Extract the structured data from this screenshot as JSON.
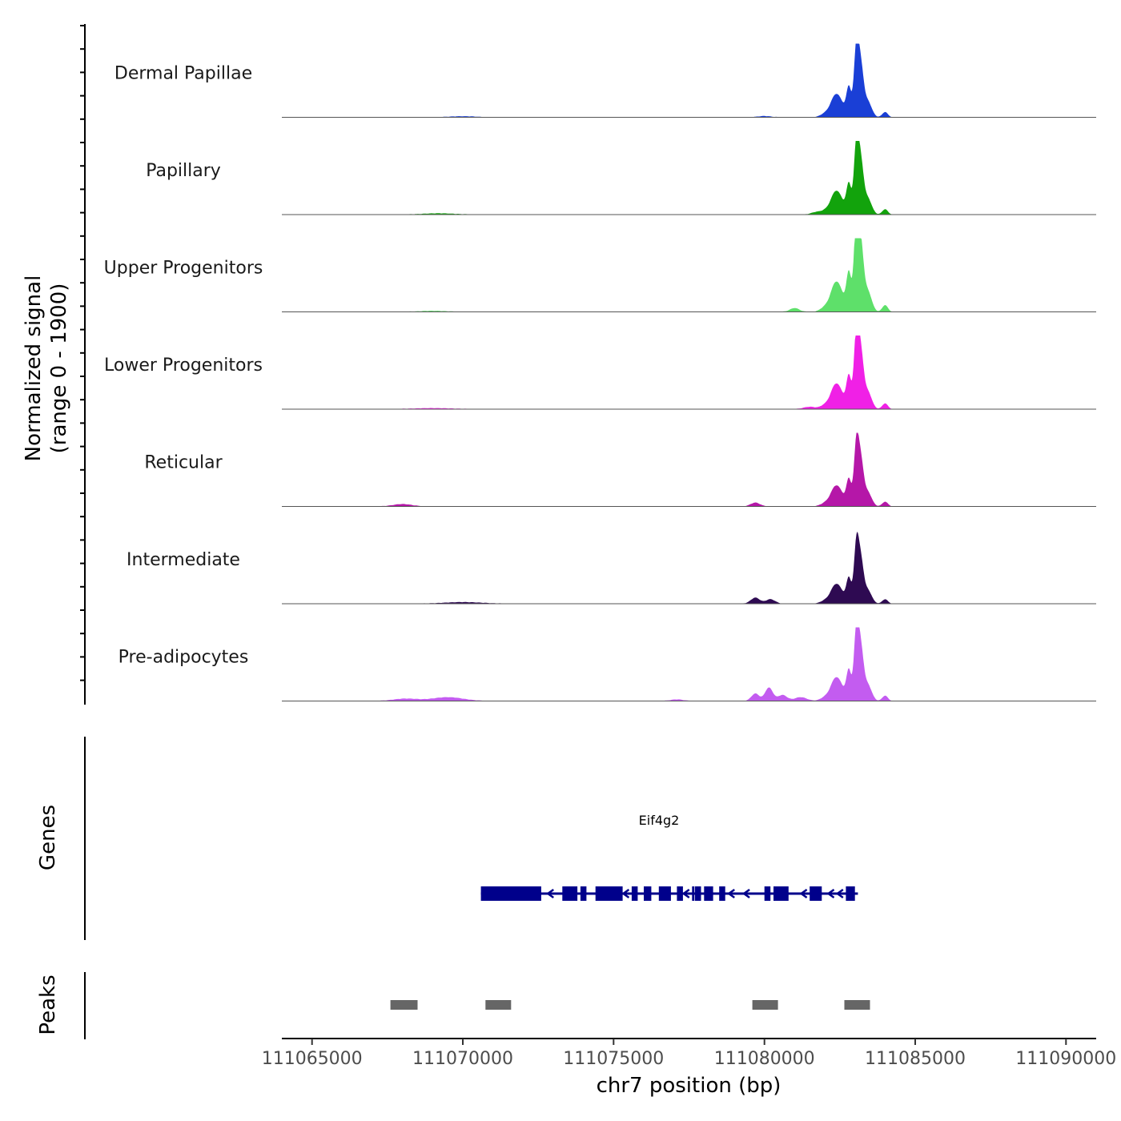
{
  "chart_data": {
    "type": "area",
    "title": "",
    "ylabel_line1": "Normalized signal",
    "ylabel_line2": "(range 0 - 1900)",
    "xlabel": "chr7 position (bp)",
    "chromosome": "chr7",
    "xlim": [
      111064000,
      111091000
    ],
    "ylim": [
      0,
      1900
    ],
    "x_ticks": [
      111065000,
      111070000,
      111075000,
      111080000,
      111085000,
      111090000
    ],
    "x_tick_labels": [
      "111065000",
      "111070000",
      "111075000",
      "111080000",
      "111085000",
      "111090000"
    ],
    "peak_profile": [
      {
        "center": 111082300,
        "width": 130,
        "height": 0.18
      },
      {
        "center": 111082500,
        "width": 150,
        "height": 0.22
      },
      {
        "center": 111082800,
        "width": 80,
        "height": 0.4
      },
      {
        "center": 111083050,
        "width": 80,
        "height": 0.95
      },
      {
        "center": 111083200,
        "width": 90,
        "height": 0.62
      },
      {
        "center": 111083420,
        "width": 130,
        "height": 0.22
      },
      {
        "center": 111082050,
        "width": 160,
        "height": 0.06
      },
      {
        "center": 111084000,
        "width": 90,
        "height": 0.07
      }
    ],
    "series": [
      {
        "name": "Dermal Papillae",
        "color": "#1a3fd6",
        "scale": 1.0,
        "minor": [
          {
            "center": 111080000,
            "width": 200,
            "height": 0.015
          },
          {
            "center": 111070000,
            "width": 400,
            "height": 0.012
          }
        ]
      },
      {
        "name": "Papillary",
        "color": "#12a30c",
        "scale": 1.02,
        "minor": [
          {
            "center": 111081700,
            "width": 150,
            "height": 0.03
          },
          {
            "center": 111069200,
            "width": 500,
            "height": 0.015
          }
        ]
      },
      {
        "name": "Upper Progenitors",
        "color": "#5ee06a",
        "scale": 1.3,
        "minor": [
          {
            "center": 111081000,
            "width": 150,
            "height": 0.05
          },
          {
            "center": 111069000,
            "width": 400,
            "height": 0.012
          }
        ]
      },
      {
        "name": "Lower Progenitors",
        "color": "#f020e6",
        "scale": 1.1,
        "minor": [
          {
            "center": 111081500,
            "width": 200,
            "height": 0.03
          },
          {
            "center": 111069000,
            "width": 600,
            "height": 0.012
          }
        ]
      },
      {
        "name": "Reticular",
        "color": "#b517a8",
        "scale": 0.9,
        "minor": [
          {
            "center": 111079700,
            "width": 150,
            "height": 0.05
          },
          {
            "center": 111068000,
            "width": 300,
            "height": 0.03
          }
        ]
      },
      {
        "name": "Intermediate",
        "color": "#2e0a52",
        "scale": 0.85,
        "minor": [
          {
            "center": 111079700,
            "width": 150,
            "height": 0.08
          },
          {
            "center": 111080200,
            "width": 150,
            "height": 0.06
          },
          {
            "center": 111070000,
            "width": 600,
            "height": 0.02
          }
        ]
      },
      {
        "name": "Pre-adipocytes",
        "color": "#c35cf0",
        "scale": 1.02,
        "minor": [
          {
            "center": 111079700,
            "width": 130,
            "height": 0.1
          },
          {
            "center": 111080150,
            "width": 130,
            "height": 0.18
          },
          {
            "center": 111080600,
            "width": 150,
            "height": 0.08
          },
          {
            "center": 111081200,
            "width": 200,
            "height": 0.05
          },
          {
            "center": 111069500,
            "width": 500,
            "height": 0.05
          },
          {
            "center": 111068100,
            "width": 400,
            "height": 0.03
          },
          {
            "center": 111077100,
            "width": 200,
            "height": 0.02
          }
        ]
      }
    ],
    "gene": {
      "name": "Eif4g2",
      "start": 111070600,
      "end": 111083100,
      "color": "#00008b",
      "exons": [
        [
          111070600,
          111072600
        ],
        [
          111073300,
          111073800
        ],
        [
          111073900,
          111074100
        ],
        [
          111074400,
          111075300
        ],
        [
          111075600,
          111075800
        ],
        [
          111076000,
          111076250
        ],
        [
          111076500,
          111076900
        ],
        [
          111077100,
          111077300
        ],
        [
          111077600,
          111077650
        ],
        [
          111077700,
          111077900
        ],
        [
          111078000,
          111078300
        ],
        [
          111078500,
          111078700
        ],
        [
          111080000,
          111080200
        ],
        [
          111080300,
          111080800
        ],
        [
          111081500,
          111081900
        ],
        [
          111082700,
          111083000
        ]
      ],
      "arrows": [
        111072900,
        111075400,
        111077400,
        111078900,
        111079400,
        111081300,
        111082200,
        111082500
      ]
    },
    "peaks": {
      "color": "#666666",
      "regions": [
        [
          111067600,
          111068500
        ],
        [
          111070750,
          111071600
        ],
        [
          111079600,
          111080450
        ],
        [
          111082650,
          111083500
        ]
      ]
    },
    "track_labels": {
      "genes": "Genes",
      "peaks": "Peaks"
    }
  }
}
